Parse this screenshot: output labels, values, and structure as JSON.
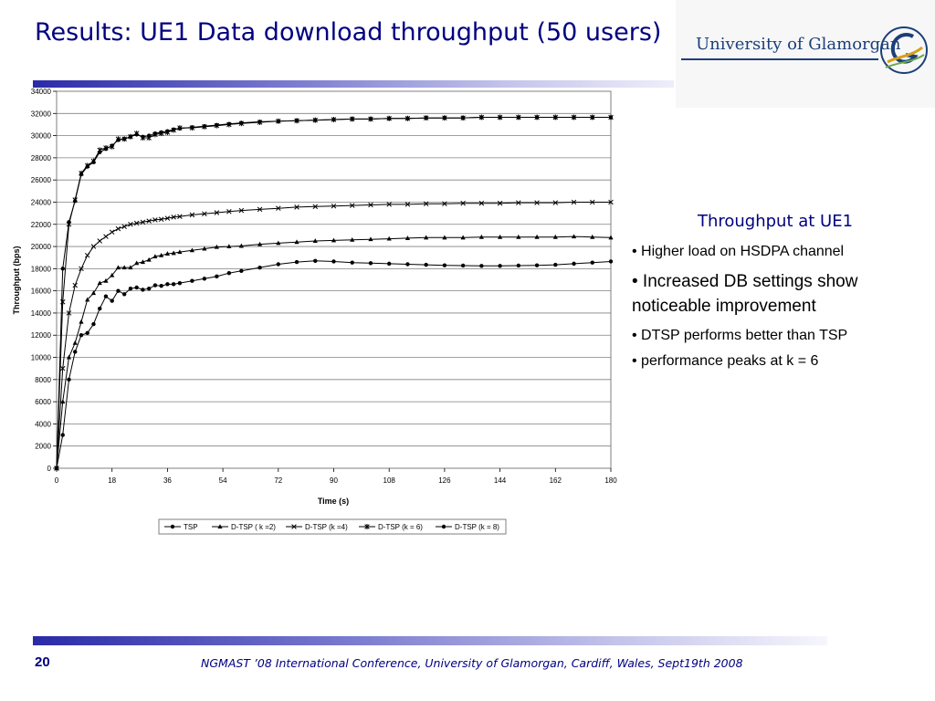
{
  "slide": {
    "title": "Results: UE1 Data download throughput (50 users)",
    "logo_text": "University of Glamorgan",
    "side_heading": "Throughput at UE1",
    "bullets": [
      "• Higher load on HSDPA channel",
      "• Increased DB settings show noticeable improvement",
      "• DTSP performs better than TSP",
      "• performance peaks at k = 6"
    ],
    "page_number": "20",
    "footer": "NGMAST ’08 International Conference, University of Glamorgan, Cardiff,  Wales, Sept19th  2008"
  },
  "colors": {
    "title": "#000080",
    "logo": "#1c3f7a",
    "series": "#000000"
  },
  "chart_data": {
    "type": "line",
    "xlabel": "Time (s)",
    "ylabel": "Throughput (bps)",
    "xlim": [
      0,
      180
    ],
    "ylim": [
      0,
      34000
    ],
    "xticks": [
      0,
      18,
      36,
      54,
      72,
      90,
      108,
      126,
      144,
      162,
      180
    ],
    "yticks": [
      0,
      2000,
      4000,
      6000,
      8000,
      10000,
      12000,
      14000,
      16000,
      18000,
      20000,
      22000,
      24000,
      26000,
      28000,
      30000,
      32000,
      34000
    ],
    "grid": "horizontal",
    "legend_position": "bottom",
    "series": [
      {
        "name": "TSP",
        "marker": "circle",
        "x": [
          0,
          2,
          4,
          6,
          8,
          10,
          12,
          14,
          16,
          18,
          20,
          22,
          24,
          26,
          28,
          30,
          32,
          34,
          36,
          38,
          40,
          44,
          48,
          52,
          56,
          60,
          66,
          72,
          78,
          84,
          90,
          96,
          102,
          108,
          114,
          120,
          126,
          132,
          138,
          144,
          150,
          156,
          162,
          168,
          174,
          180
        ],
        "y": [
          0,
          3000,
          8000,
          10500,
          12000,
          12200,
          13000,
          14400,
          15500,
          15100,
          16000,
          15700,
          16200,
          16300,
          16100,
          16200,
          16500,
          16450,
          16600,
          16600,
          16700,
          16900,
          17100,
          17300,
          17600,
          17800,
          18100,
          18400,
          18600,
          18700,
          18650,
          18550,
          18500,
          18450,
          18400,
          18350,
          18300,
          18280,
          18250,
          18250,
          18280,
          18300,
          18350,
          18450,
          18550,
          18650
        ]
      },
      {
        "name": "D-TSP ( k =2)",
        "marker": "triangle",
        "x": [
          0,
          2,
          4,
          6,
          8,
          10,
          12,
          14,
          16,
          18,
          20,
          22,
          24,
          26,
          28,
          30,
          32,
          34,
          36,
          38,
          40,
          44,
          48,
          52,
          56,
          60,
          66,
          72,
          78,
          84,
          90,
          96,
          102,
          108,
          114,
          120,
          126,
          132,
          138,
          144,
          150,
          156,
          162,
          168,
          174,
          180
        ],
        "y": [
          0,
          6000,
          10000,
          11300,
          13200,
          15200,
          15800,
          16700,
          16900,
          17400,
          18100,
          18100,
          18100,
          18500,
          18600,
          18800,
          19100,
          19200,
          19350,
          19400,
          19500,
          19650,
          19800,
          19950,
          20000,
          20050,
          20200,
          20300,
          20400,
          20500,
          20550,
          20600,
          20650,
          20700,
          20750,
          20800,
          20800,
          20800,
          20850,
          20850,
          20850,
          20850,
          20850,
          20900,
          20850,
          20800
        ]
      },
      {
        "name": "D-TSP (k =4)",
        "marker": "cross",
        "x": [
          0,
          2,
          4,
          6,
          8,
          10,
          12,
          14,
          16,
          18,
          20,
          22,
          24,
          26,
          28,
          30,
          32,
          34,
          36,
          38,
          40,
          44,
          48,
          52,
          56,
          60,
          66,
          72,
          78,
          84,
          90,
          96,
          102,
          108,
          114,
          120,
          126,
          132,
          138,
          144,
          150,
          156,
          162,
          168,
          174,
          180
        ],
        "y": [
          0,
          9000,
          14000,
          16500,
          18000,
          19200,
          20000,
          20500,
          20900,
          21300,
          21600,
          21800,
          22000,
          22100,
          22200,
          22300,
          22400,
          22450,
          22550,
          22650,
          22700,
          22850,
          22950,
          23050,
          23150,
          23250,
          23350,
          23450,
          23550,
          23600,
          23650,
          23700,
          23750,
          23800,
          23800,
          23850,
          23850,
          23900,
          23900,
          23900,
          23950,
          23950,
          23950,
          24000,
          24000,
          24000
        ]
      },
      {
        "name": "D-TSP (k = 6)",
        "marker": "star",
        "x": [
          0,
          2,
          4,
          6,
          8,
          10,
          12,
          14,
          16,
          18,
          20,
          22,
          24,
          26,
          28,
          30,
          32,
          34,
          36,
          38,
          40,
          44,
          48,
          52,
          56,
          60,
          66,
          72,
          78,
          84,
          90,
          96,
          102,
          108,
          114,
          120,
          126,
          132,
          138,
          144,
          150,
          156,
          162,
          168,
          174,
          180
        ],
        "y": [
          0,
          15000,
          22000,
          24200,
          26600,
          27300,
          27700,
          28700,
          28900,
          29000,
          29700,
          29700,
          29900,
          30200,
          29800,
          29800,
          30100,
          30200,
          30300,
          30500,
          30700,
          30700,
          30800,
          30900,
          31000,
          31100,
          31200,
          31300,
          31350,
          31400,
          31450,
          31500,
          31500,
          31550,
          31550,
          31600,
          31600,
          31600,
          31650,
          31650,
          31650,
          31650,
          31650,
          31650,
          31650,
          31650
        ]
      },
      {
        "name": "D-TSP (k = 8)",
        "marker": "dot",
        "x": [
          0,
          2,
          4,
          6,
          8,
          10,
          12,
          14,
          16,
          18,
          20,
          22,
          24,
          26,
          28,
          30,
          32,
          34,
          36,
          38,
          40,
          44,
          48,
          52,
          56,
          60,
          66,
          72,
          78,
          84,
          90,
          96,
          102,
          108,
          114,
          120,
          126,
          132,
          138,
          144,
          150,
          156,
          162,
          168,
          174,
          180
        ],
        "y": [
          0,
          18000,
          22200,
          24100,
          26500,
          27200,
          27600,
          28500,
          28800,
          29100,
          29600,
          29700,
          29900,
          30100,
          29900,
          30000,
          30200,
          30300,
          30400,
          30550,
          30650,
          30750,
          30850,
          30950,
          31050,
          31150,
          31250,
          31300,
          31350,
          31400,
          31450,
          31500,
          31500,
          31550,
          31550,
          31600,
          31600,
          31600,
          31650,
          31650,
          31650,
          31650,
          31650,
          31650,
          31650,
          31650
        ]
      }
    ]
  }
}
